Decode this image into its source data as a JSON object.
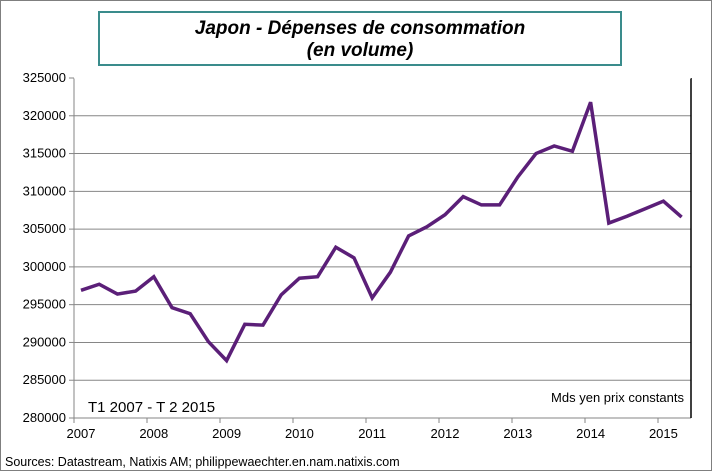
{
  "chart_data": {
    "type": "line",
    "title_lines": [
      "Japon - Dépenses de consommation",
      "(en volume)"
    ],
    "xlabel": "",
    "ylabel": "",
    "x_tick_labels": [
      "2007",
      "2008",
      "2009",
      "2010",
      "2011",
      "2012",
      "2013",
      "2014",
      "2015"
    ],
    "y_tick_labels": [
      "325000",
      "320000",
      "315000",
      "310000",
      "305000",
      "300000",
      "295000",
      "290000",
      "285000",
      "280000"
    ],
    "ylim": [
      280000,
      325000
    ],
    "grid": "horizontal",
    "annotations": {
      "period": "T1 2007 - T 2 2015",
      "unit": "Mds yen prix constants"
    },
    "source": "Sources: Datastream,  Natixis AM; philippewaechter.en.nam.natixis.com",
    "line_color": "#5b1f78",
    "series": [
      {
        "x": [
          "T1 2007",
          "T2 2007",
          "T3 2007",
          "T4 2007",
          "T1 2008",
          "T2 2008",
          "T3 2008",
          "T4 2008",
          "T1 2009",
          "T2 2009",
          "T3 2009",
          "T4 2009",
          "T1 2010",
          "T2 2010",
          "T3 2010",
          "T4 2010",
          "T1 2011",
          "T2 2011",
          "T3 2011",
          "T4 2011",
          "T1 2012",
          "T2 2012",
          "T3 2012",
          "T4 2012",
          "T1 2013",
          "T2 2013",
          "T3 2013",
          "T4 2013",
          "T1 2014",
          "T2 2014",
          "T3 2014",
          "T4 2014",
          "T1 2015",
          "T2 2015"
        ],
        "values": [
          296900,
          297700,
          296400,
          296800,
          298700,
          294600,
          293800,
          290100,
          287600,
          292400,
          292300,
          296300,
          298500,
          298700,
          302600,
          301200,
          295900,
          299300,
          304100,
          305300,
          306900,
          309300,
          308200,
          308200,
          311900,
          315000,
          316000,
          315300,
          321800,
          305800,
          306700,
          307700,
          308700,
          306600
        ]
      }
    ]
  }
}
